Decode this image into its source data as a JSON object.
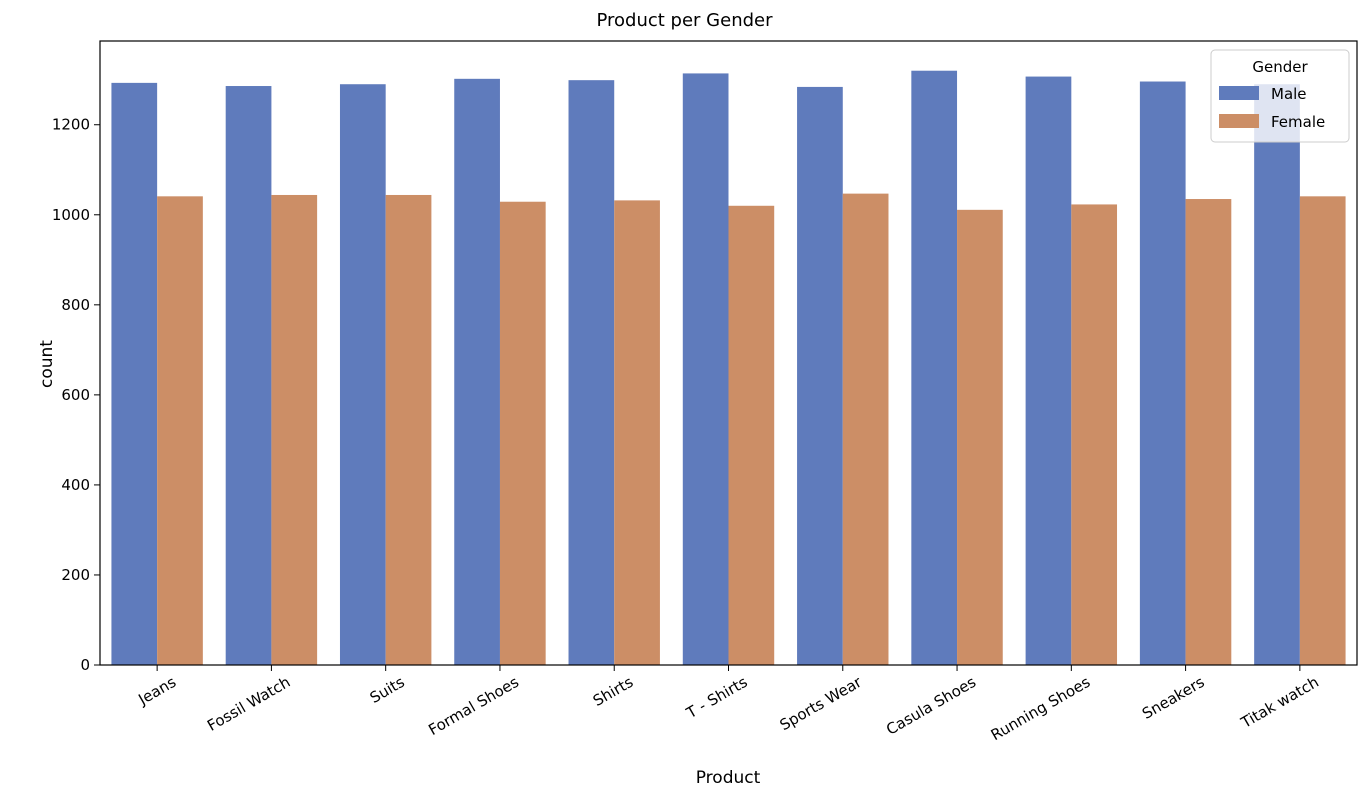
{
  "chart_data": {
    "type": "bar",
    "title": "Product per Gender",
    "xlabel": "Product",
    "ylabel": "count",
    "categories": [
      "Jeans",
      "Fossil Watch",
      "Suits",
      "Formal Shoes",
      "Shirts",
      "T - Shirts",
      "Sports Wear",
      "Casula Shoes",
      "Running Shoes",
      "Sneakers",
      "Titak watch"
    ],
    "series": [
      {
        "name": "Male",
        "color": "#5f7bbc",
        "values": [
          1293,
          1286,
          1290,
          1302,
          1299,
          1314,
          1284,
          1320,
          1307,
          1296,
          1290
        ]
      },
      {
        "name": "Female",
        "color": "#cc8e66",
        "values": [
          1041,
          1044,
          1044,
          1029,
          1032,
          1020,
          1047,
          1011,
          1023,
          1035,
          1041
        ]
      }
    ],
    "yticks": [
      0,
      200,
      400,
      600,
      800,
      1000,
      1200
    ],
    "ylim": [
      0,
      1386
    ],
    "legend": {
      "title": "Gender",
      "placement": "top-right"
    },
    "grid": false
  }
}
